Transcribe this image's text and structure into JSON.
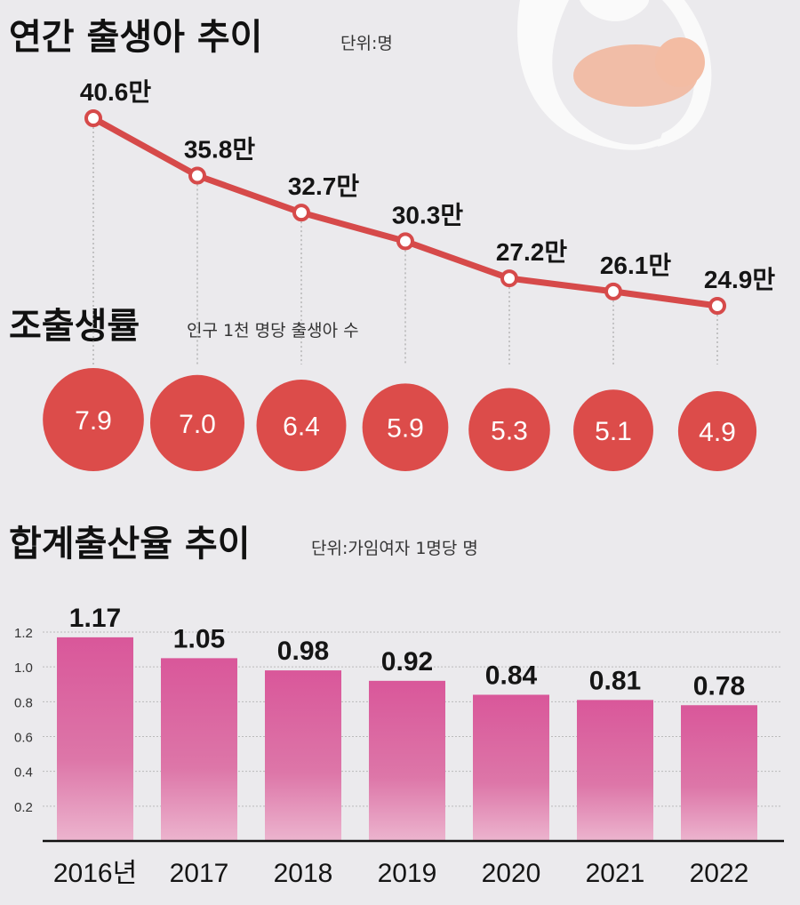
{
  "colors": {
    "line": "#d64a4a",
    "circle": "#dc4c4a",
    "bar_top": "#d9579a",
    "bar_bottom": "#eab0cc",
    "background": "#ebeaed"
  },
  "chart_data": [
    {
      "type": "line",
      "title": "연간 출생아 추이",
      "unit": "단위:명",
      "categories": [
        "2016",
        "2017",
        "2018",
        "2019",
        "2020",
        "2021",
        "2022"
      ],
      "values": [
        40.6,
        35.8,
        32.7,
        30.3,
        27.2,
        26.1,
        24.9
      ],
      "labels": [
        "40.6만",
        "35.8만",
        "32.7만",
        "30.3만",
        "27.2만",
        "26.1만",
        "24.9만"
      ]
    },
    {
      "type": "scatter",
      "title": "조출생률",
      "unit": "인구 1천 명당 출생아 수",
      "categories": [
        "2016",
        "2017",
        "2018",
        "2019",
        "2020",
        "2021",
        "2022"
      ],
      "values": [
        7.9,
        7.0,
        6.4,
        5.9,
        5.3,
        5.1,
        4.9
      ],
      "labels": [
        "7.9",
        "7.0",
        "6.4",
        "5.9",
        "5.3",
        "5.1",
        "4.9"
      ]
    },
    {
      "type": "bar",
      "title": "합계출산율 추이",
      "unit": "단위:가임여자 1명당 명",
      "categories": [
        "2016년",
        "2017",
        "2018",
        "2019",
        "2020",
        "2021",
        "2022"
      ],
      "values": [
        1.17,
        1.05,
        0.98,
        0.92,
        0.84,
        0.81,
        0.78
      ],
      "labels": [
        "1.17",
        "1.05",
        "0.98",
        "0.92",
        "0.84",
        "0.81",
        "0.78"
      ],
      "yticks": [
        "0.2",
        "0.4",
        "0.6",
        "0.8",
        "1.0",
        "1.2"
      ],
      "ylim": [
        0,
        1.2
      ],
      "grid": true
    }
  ]
}
